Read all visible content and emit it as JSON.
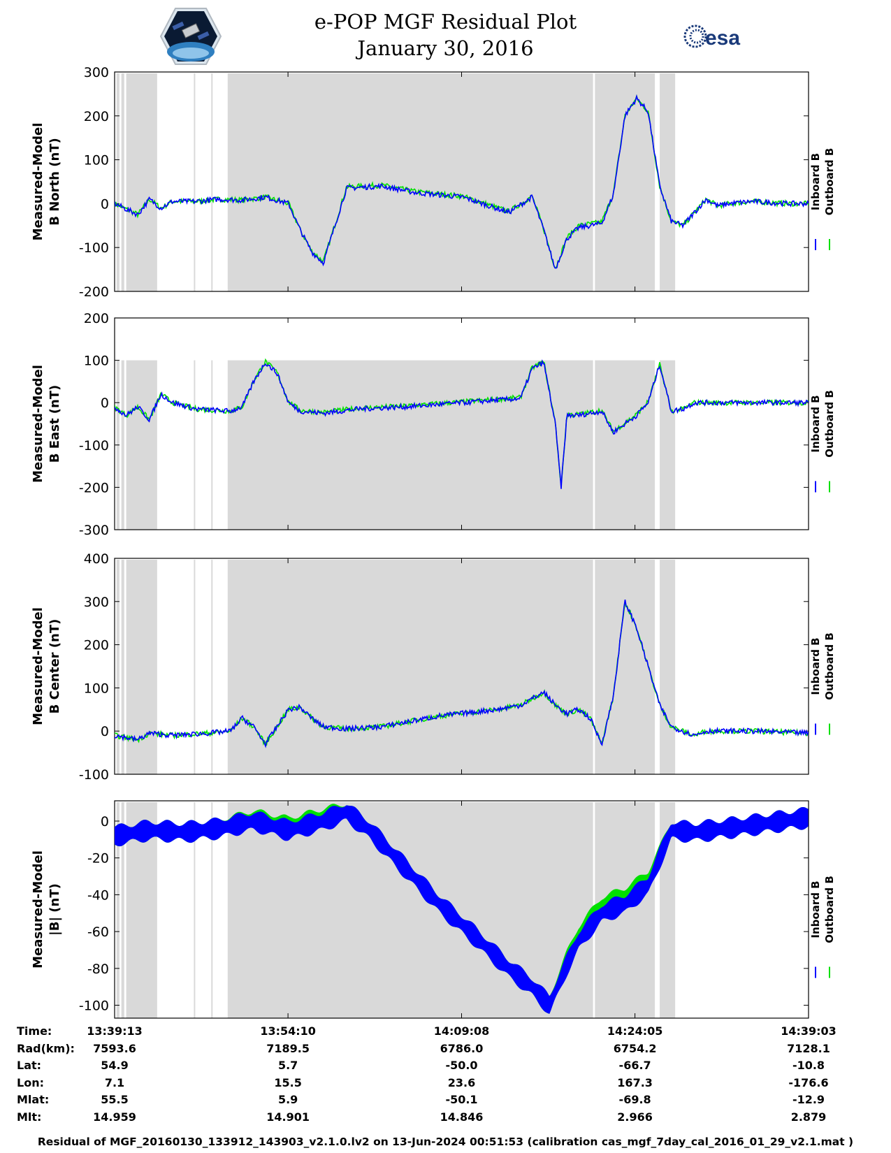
{
  "header": {
    "title": "e-POP MGF Residual Plot",
    "date": "January 30, 2016",
    "left_logo": "cassiope-logo",
    "right_logo": "esa-logo",
    "right_logo_text": "esa"
  },
  "colors": {
    "inboard": "#0000ff",
    "outboard": "#00e000",
    "shade": "#d9d9d9"
  },
  "legend": {
    "inboard": "Inboard B",
    "outboard": "Outboard B"
  },
  "shading_intervals_hhmmss": [
    [
      "13:39:23",
      "13:39:38"
    ],
    [
      "13:39:48",
      "13:40:03"
    ],
    [
      "13:40:13",
      "13:42:53"
    ],
    [
      "13:46:03",
      "13:46:08"
    ],
    [
      "13:47:33",
      "13:47:38"
    ],
    [
      "13:48:58",
      "14:20:28"
    ],
    [
      "14:20:38",
      "14:25:48"
    ],
    [
      "14:26:13",
      "14:27:33"
    ]
  ],
  "chart_data": [
    {
      "type": "line",
      "ylabel": [
        "Measured-Model",
        "B North (nT)"
      ],
      "ylim": [
        -200,
        300
      ],
      "yticks": [
        -200,
        -100,
        0,
        100,
        200,
        300
      ],
      "x_minutes": [
        0,
        2,
        3,
        4,
        5,
        7,
        9,
        11,
        13,
        15,
        16,
        17,
        18,
        19,
        20,
        23,
        26,
        30,
        34,
        36,
        37,
        38,
        39,
        40,
        42,
        43,
        44,
        45,
        46,
        47,
        48,
        49,
        50,
        51,
        52,
        53,
        55,
        58,
        60
      ],
      "series": [
        {
          "name": "Inboard B",
          "values": [
            0,
            -25,
            10,
            -10,
            5,
            5,
            10,
            8,
            15,
            0,
            -60,
            -110,
            -135,
            -50,
            35,
            40,
            25,
            15,
            -20,
            15,
            -60,
            -150,
            -80,
            -55,
            -45,
            20,
            200,
            240,
            210,
            40,
            -40,
            -50,
            -20,
            10,
            -5,
            0,
            5,
            0,
            0
          ]
        },
        {
          "name": "Outboard B",
          "values": [
            0,
            -25,
            10,
            -10,
            5,
            5,
            10,
            8,
            15,
            0,
            -60,
            -108,
            -132,
            -48,
            38,
            42,
            27,
            17,
            -18,
            17,
            -58,
            -148,
            -78,
            -50,
            -42,
            22,
            200,
            240,
            210,
            40,
            -40,
            -50,
            -20,
            10,
            -5,
            0,
            5,
            0,
            0
          ]
        }
      ]
    },
    {
      "type": "line",
      "ylabel": [
        "Measured-Model",
        "B East (nT)"
      ],
      "ylim": [
        -300,
        200
      ],
      "yticks": [
        -300,
        -200,
        -100,
        0,
        100,
        200
      ],
      "x_minutes": [
        0,
        1,
        2,
        3,
        4,
        5,
        7,
        10,
        11,
        12,
        13,
        14,
        15,
        16,
        18,
        21,
        25,
        30,
        35,
        36,
        37,
        38,
        38.5,
        39,
        40,
        42,
        43,
        45,
        46,
        47,
        48,
        49,
        50,
        55,
        60
      ],
      "series": [
        {
          "name": "Inboard B",
          "values": [
            -10,
            -30,
            -10,
            -40,
            20,
            0,
            -15,
            -20,
            -10,
            50,
            95,
            70,
            0,
            -20,
            -25,
            -15,
            -10,
            0,
            10,
            80,
            95,
            -50,
            -200,
            -30,
            -30,
            -20,
            -70,
            -30,
            0,
            90,
            -20,
            -15,
            0,
            0,
            0
          ]
        },
        {
          "name": "Outboard B",
          "values": [
            -10,
            -30,
            -10,
            -40,
            20,
            0,
            -15,
            -20,
            -10,
            52,
            97,
            72,
            2,
            -18,
            -23,
            -13,
            -8,
            2,
            12,
            82,
            97,
            -48,
            -198,
            -28,
            -28,
            -18,
            -68,
            -28,
            2,
            90,
            -20,
            -15,
            0,
            0,
            0
          ]
        }
      ]
    },
    {
      "type": "line",
      "ylabel": [
        "Measured-Model",
        "B Center (nT)"
      ],
      "ylim": [
        -100,
        400
      ],
      "yticks": [
        -100,
        0,
        100,
        200,
        300,
        400
      ],
      "x_minutes": [
        0,
        2,
        3,
        5,
        8,
        10,
        11,
        12,
        13,
        14,
        15,
        16,
        17,
        18,
        20,
        23,
        28,
        33,
        35,
        37,
        38,
        39,
        40,
        41,
        42,
        43,
        44,
        45,
        46,
        47,
        48,
        50,
        51,
        55,
        60
      ],
      "series": [
        {
          "name": "Inboard B",
          "values": [
            -10,
            -20,
            -5,
            -10,
            -5,
            0,
            30,
            10,
            -30,
            10,
            50,
            55,
            30,
            10,
            5,
            10,
            35,
            50,
            60,
            90,
            60,
            40,
            50,
            30,
            -30,
            80,
            300,
            240,
            150,
            60,
            10,
            -10,
            0,
            0,
            -5
          ]
        },
        {
          "name": "Outboard B",
          "values": [
            -10,
            -20,
            -5,
            -10,
            -5,
            0,
            30,
            10,
            -30,
            10,
            50,
            55,
            30,
            10,
            5,
            10,
            35,
            50,
            60,
            90,
            60,
            40,
            50,
            30,
            -30,
            80,
            300,
            240,
            150,
            60,
            10,
            -10,
            0,
            0,
            -5
          ]
        }
      ]
    },
    {
      "type": "line",
      "ylabel": [
        "Measured-Model",
        "|B| (nT)"
      ],
      "ylim": [
        -107,
        11
      ],
      "yticks": [
        -100,
        -80,
        -60,
        -40,
        -20,
        0
      ],
      "band_halfwidth": 6,
      "x_minutes": [
        0,
        3,
        6,
        9,
        12,
        15,
        18,
        20,
        22,
        25,
        28,
        31,
        34,
        36,
        37.5,
        39,
        40,
        42,
        44,
        46,
        47,
        48,
        50,
        54,
        60
      ],
      "series": [
        {
          "name": "Inboard B",
          "values": [
            -8,
            -5,
            -6,
            -4,
            0,
            -5,
            0,
            5,
            -5,
            -25,
            -45,
            -62,
            -80,
            -90,
            -100,
            -78,
            -65,
            -50,
            -45,
            -35,
            -20,
            -5,
            -6,
            -3,
            2
          ]
        },
        {
          "name": "Outboard B",
          "values": [
            -8,
            -5,
            -6,
            -4,
            1,
            -3,
            2,
            5,
            -5,
            -25,
            -45,
            -62,
            -80,
            -90,
            -100,
            -76,
            -62,
            -46,
            -41,
            -32,
            -19,
            -5,
            -6,
            -3,
            2
          ]
        }
      ]
    }
  ],
  "info_table": {
    "row_labels": [
      "Time:",
      "Rad(km):",
      "Lat:",
      "Lon:",
      "Mlat:",
      "Mlt:"
    ],
    "columns": [
      [
        "13:39:13",
        "7593.6",
        "54.9",
        "7.1",
        "55.5",
        "14.959"
      ],
      [
        "13:54:10",
        "7189.5",
        "5.7",
        "15.5",
        "5.9",
        "14.901"
      ],
      [
        "14:09:08",
        "6786.0",
        "-50.0",
        "23.6",
        "-50.1",
        "14.846"
      ],
      [
        "14:24:05",
        "6754.2",
        "-66.7",
        "167.3",
        "-69.8",
        "2.966"
      ],
      [
        "14:39:03",
        "7128.1",
        "-10.8",
        "-176.6",
        "-12.9",
        "2.879"
      ]
    ]
  },
  "footer": "Residual of MGF_20160130_133912_143903_v2.1.0.lv2 on 13-Jun-2024 00:51:53 (calibration cas_mgf_7day_cal_2016_01_29_v2.1.mat )"
}
